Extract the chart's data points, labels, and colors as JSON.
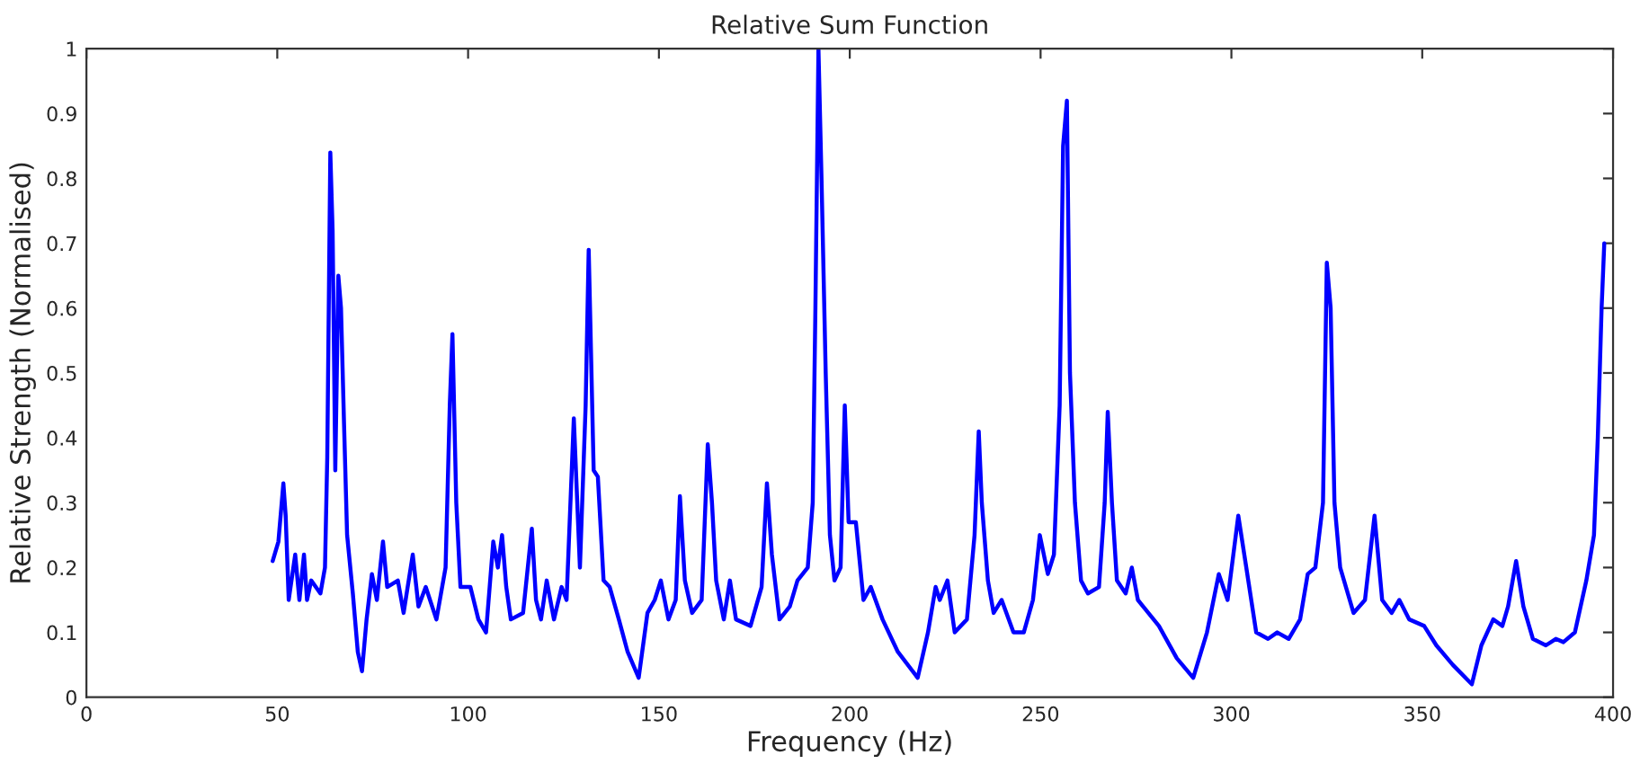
{
  "chart_data": {
    "type": "line",
    "title": "Relative Sum Function",
    "xlabel": "Frequency (Hz)",
    "ylabel": "Relative Strength (Normalised)",
    "xlim": [
      0,
      400
    ],
    "xticks": [
      0,
      50,
      100,
      150,
      200,
      250,
      300,
      350,
      400
    ],
    "ylim": [
      0,
      1
    ],
    "yticks": [
      0,
      0.1,
      0.2,
      0.3,
      0.4,
      0.5,
      0.6,
      0.7,
      0.8,
      0.9,
      1
    ],
    "marker": "none",
    "line_style": "solid",
    "series": [
      {
        "color": "#0000ff",
        "x": [
          48.8,
          50.3,
          51.6,
          52.2,
          53,
          54.7,
          55.8,
          57,
          57.8,
          58.9,
          61.3,
          62.5,
          63.1,
          63.9,
          64.5,
          65.2,
          66,
          66.7,
          67.5,
          68.3,
          69.8,
          71.1,
          72.2,
          73.4,
          74.8,
          76.1,
          77.7,
          78.8,
          81.6,
          83.1,
          85.5,
          87,
          88.9,
          91.7,
          94.1,
          95.2,
          95.9,
          96.9,
          98,
          100.6,
          102.7,
          104.7,
          106.6,
          107.8,
          108.9,
          110,
          111.2,
          114.4,
          116.7,
          117.8,
          119.1,
          120.6,
          122.5,
          124.5,
          125.8,
          127.7,
          129.3,
          130.8,
          131.6,
          132.9,
          134,
          135.5,
          137.1,
          139.5,
          141.8,
          144.7,
          147,
          148.9,
          150.5,
          152.5,
          154.4,
          155.5,
          156.8,
          158.7,
          161.2,
          162.8,
          163.9,
          165,
          167,
          168.6,
          170.2,
          174,
          176.9,
          178.3,
          179.6,
          181.6,
          184.3,
          186.3,
          189,
          190.3,
          191,
          191.8,
          192.6,
          193.7,
          194.8,
          196,
          197.6,
          198.7,
          199.7,
          201.6,
          203.6,
          205.5,
          208.6,
          212.6,
          217.8,
          220.5,
          222.5,
          223.6,
          225.6,
          227.5,
          230.7,
          232.7,
          233.8,
          234.6,
          236.2,
          237.7,
          239.8,
          242.9,
          245.6,
          248,
          249.8,
          251.9,
          253.5,
          255,
          255.9,
          256.9,
          257.7,
          259,
          260.6,
          262.4,
          265.3,
          266.8,
          267.6,
          268.7,
          270,
          272.3,
          273.9,
          275.5,
          281,
          285.7,
          290,
          293.6,
          296.7,
          299,
          301.8,
          303.9,
          306.5,
          309.6,
          312,
          315,
          318,
          320,
          322,
          324,
          325,
          326,
          327,
          328.5,
          332,
          335,
          337.5,
          339.5,
          342,
          344,
          346.6,
          350.5,
          353.7,
          358,
          363,
          365.5,
          368.6,
          371,
          372.5,
          374.6,
          376.5,
          379,
          382.4,
          385,
          387,
          390,
          393,
          395,
          396,
          397,
          397.7
        ],
        "values": [
          0.21,
          0.24,
          0.33,
          0.28,
          0.15,
          0.22,
          0.15,
          0.22,
          0.15,
          0.18,
          0.16,
          0.2,
          0.37,
          0.84,
          0.72,
          0.35,
          0.65,
          0.6,
          0.42,
          0.25,
          0.16,
          0.07,
          0.04,
          0.12,
          0.19,
          0.15,
          0.24,
          0.17,
          0.18,
          0.13,
          0.22,
          0.14,
          0.17,
          0.12,
          0.2,
          0.45,
          0.56,
          0.3,
          0.17,
          0.17,
          0.12,
          0.1,
          0.24,
          0.2,
          0.25,
          0.17,
          0.12,
          0.13,
          0.26,
          0.15,
          0.12,
          0.18,
          0.12,
          0.17,
          0.15,
          0.43,
          0.2,
          0.45,
          0.69,
          0.35,
          0.34,
          0.18,
          0.17,
          0.12,
          0.07,
          0.03,
          0.13,
          0.15,
          0.18,
          0.12,
          0.15,
          0.31,
          0.18,
          0.13,
          0.15,
          0.39,
          0.3,
          0.18,
          0.12,
          0.18,
          0.12,
          0.11,
          0.17,
          0.33,
          0.22,
          0.12,
          0.14,
          0.18,
          0.2,
          0.3,
          0.6,
          1.0,
          0.8,
          0.5,
          0.25,
          0.18,
          0.2,
          0.45,
          0.27,
          0.27,
          0.15,
          0.17,
          0.12,
          0.07,
          0.03,
          0.1,
          0.17,
          0.15,
          0.18,
          0.1,
          0.12,
          0.25,
          0.41,
          0.3,
          0.18,
          0.13,
          0.15,
          0.1,
          0.1,
          0.15,
          0.25,
          0.19,
          0.22,
          0.45,
          0.85,
          0.92,
          0.5,
          0.3,
          0.18,
          0.16,
          0.17,
          0.3,
          0.44,
          0.3,
          0.18,
          0.16,
          0.2,
          0.15,
          0.11,
          0.06,
          0.03,
          0.1,
          0.19,
          0.15,
          0.28,
          0.2,
          0.1,
          0.09,
          0.1,
          0.09,
          0.12,
          0.19,
          0.2,
          0.3,
          0.67,
          0.6,
          0.3,
          0.2,
          0.13,
          0.15,
          0.28,
          0.15,
          0.13,
          0.15,
          0.12,
          0.11,
          0.08,
          0.05,
          0.02,
          0.08,
          0.12,
          0.11,
          0.14,
          0.21,
          0.14,
          0.09,
          0.08,
          0.09,
          0.085,
          0.1,
          0.18,
          0.25,
          0.4,
          0.6,
          0.7
        ]
      }
    ]
  }
}
